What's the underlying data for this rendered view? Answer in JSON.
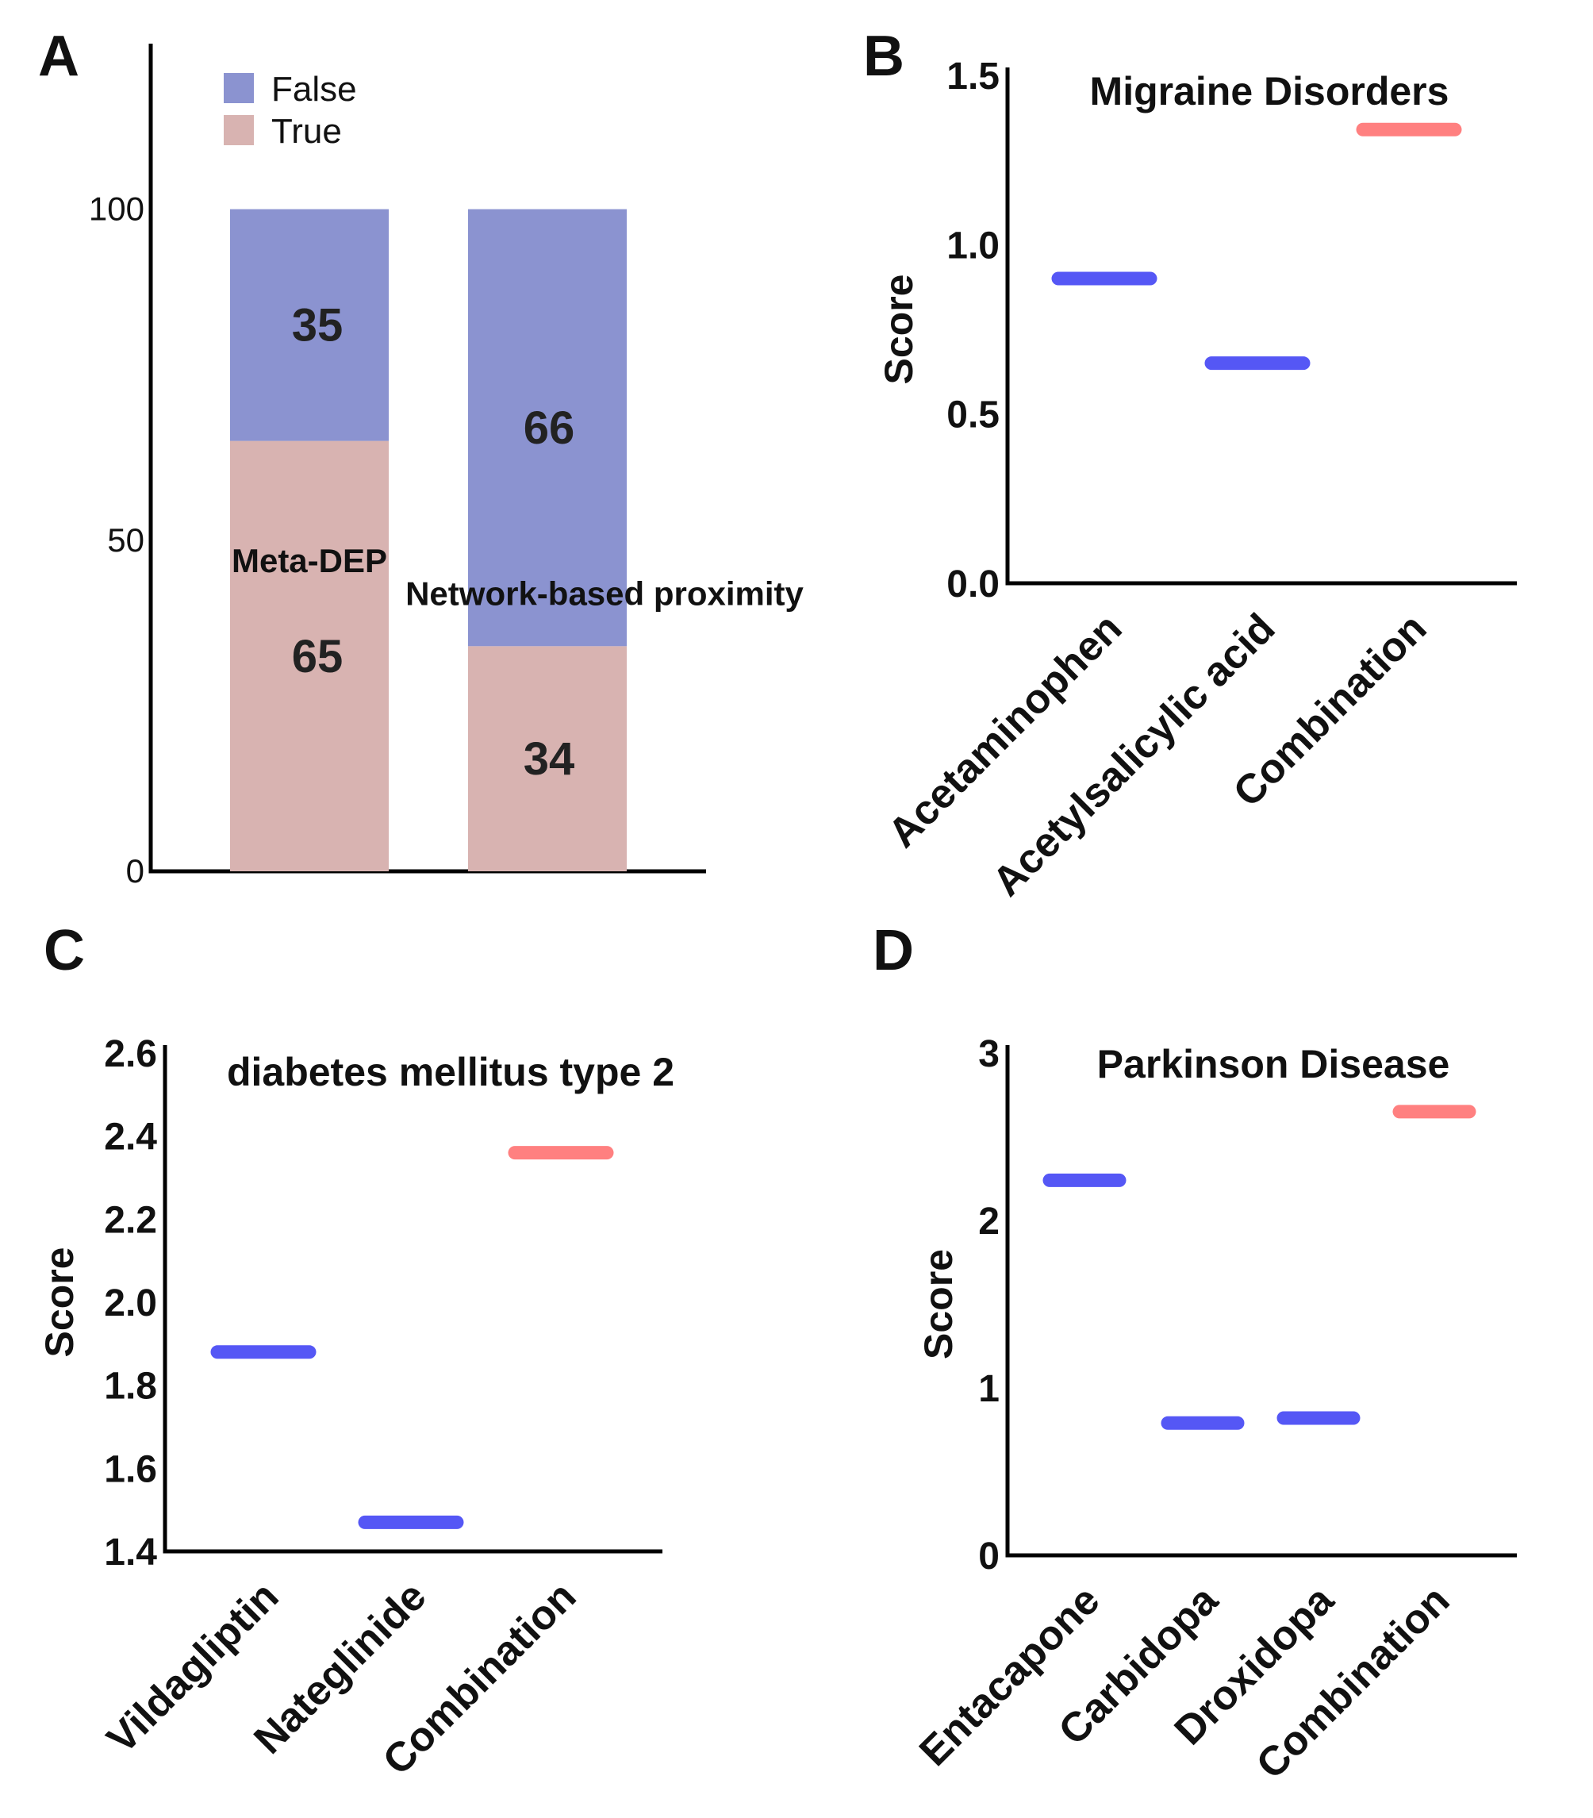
{
  "panels": {
    "A": {
      "letter": "A",
      "legend": [
        {
          "label": "False",
          "color": "#8b93d0"
        },
        {
          "label": "True",
          "color": "#d8b3b1"
        }
      ]
    },
    "B": {
      "letter": "B"
    },
    "C": {
      "letter": "C"
    },
    "D": {
      "letter": "D"
    }
  },
  "chart_data": [
    {
      "panel": "A",
      "type": "bar",
      "stacked": true,
      "categories": [
        "Meta-DEP",
        "Network-based proximity"
      ],
      "series": [
        {
          "name": "True",
          "color": "#d8b3b1",
          "values": [
            65,
            34
          ]
        },
        {
          "name": "False",
          "color": "#8b93d0",
          "values": [
            35,
            66
          ]
        }
      ],
      "ylim": [
        0,
        125
      ],
      "yticks": [
        "0",
        "50",
        "100"
      ],
      "ytick_values": [
        0,
        50,
        100
      ],
      "legend_position": "top-left"
    },
    {
      "panel": "B",
      "type": "scatter",
      "title": "Migraine Disorders",
      "ylabel": "Score",
      "categories": [
        "Acetaminophen",
        "Acetylsalicylic acid",
        "Combination"
      ],
      "values": [
        0.9,
        0.65,
        1.34
      ],
      "colors": [
        "#5557f5",
        "#5557f5",
        "#ff8080"
      ],
      "ylim": [
        0,
        1.5
      ],
      "yticks": [
        "0.0",
        "0.5",
        "1.0",
        "1.5"
      ],
      "ytick_values": [
        0,
        0.5,
        1.0,
        1.5
      ]
    },
    {
      "panel": "C",
      "type": "scatter",
      "title": "diabetes mellitus type 2",
      "ylabel": "Score",
      "categories": [
        "Vildagliptin",
        "Nateglinide",
        "Combination"
      ],
      "values": [
        1.88,
        1.47,
        2.36
      ],
      "colors": [
        "#5557f5",
        "#5557f5",
        "#ff8080"
      ],
      "ylim": [
        1.4,
        2.6
      ],
      "yticks": [
        "1.4",
        "1.6",
        "1.8",
        "2.0",
        "2.2",
        "2.4",
        "2.6"
      ],
      "ytick_values": [
        1.4,
        1.6,
        1.8,
        2.0,
        2.2,
        2.4,
        2.6
      ]
    },
    {
      "panel": "D",
      "type": "scatter",
      "title": "Parkinson Disease",
      "ylabel": "Score",
      "categories": [
        "Entacapone",
        "Carbidopa",
        "Droxidopa",
        "Combination"
      ],
      "values": [
        2.24,
        0.79,
        0.82,
        2.65
      ],
      "colors": [
        "#5557f5",
        "#5557f5",
        "#5557f5",
        "#ff8080"
      ],
      "ylim": [
        0,
        3
      ],
      "yticks": [
        "0",
        "1",
        "2",
        "3"
      ],
      "ytick_values": [
        0,
        1,
        2,
        3
      ]
    }
  ]
}
